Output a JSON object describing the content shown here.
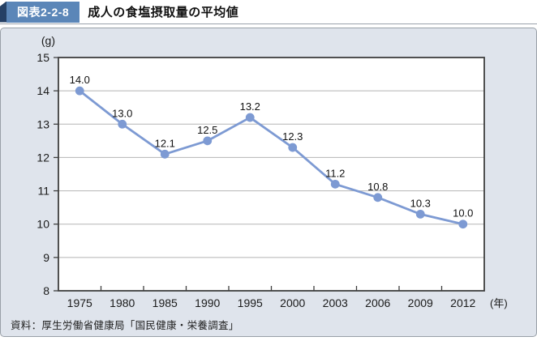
{
  "header": {
    "figure_label": "図表2-2-8",
    "title": "成人の食塩摂取量の平均値"
  },
  "footer": {
    "source": "資料：厚生労働省健康局「国民健康・栄養調査」"
  },
  "colors": {
    "badge_bg": "#5b86b8",
    "badge_fold": "#254065",
    "panel_bg": "#dfe4ec",
    "line": "#7d9ad3",
    "grid": "#b5b5b5",
    "plot_border": "#3f3f3f",
    "axis_text": "#1a1a1a"
  },
  "chart_data": {
    "type": "line",
    "title": "成人の食塩摂取量の平均値",
    "categories": [
      "1975",
      "1980",
      "1985",
      "1990",
      "1995",
      "2000",
      "2003",
      "2006",
      "2009",
      "2012"
    ],
    "values": [
      14.0,
      13.0,
      12.1,
      12.5,
      13.2,
      12.3,
      11.2,
      10.8,
      10.3,
      10.0
    ],
    "point_labels": [
      "14.0",
      "13.0",
      "12.1",
      "12.5",
      "13.2",
      "12.3",
      "11.2",
      "10.8",
      "10.3",
      "10.0"
    ],
    "unit_y": "(g)",
    "unit_x": "(年)",
    "xlabel": "",
    "ylabel": "",
    "ylim": [
      8,
      15
    ],
    "ytick_step": 1,
    "grid": "horizontal",
    "legend": "none"
  }
}
